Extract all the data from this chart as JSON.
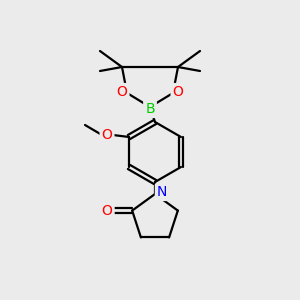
{
  "background_color": "#ebebeb",
  "bond_color": "#000000",
  "atom_colors": {
    "O": "#ff0000",
    "B": "#00cc00",
    "N": "#0000ff",
    "C": "#000000"
  },
  "figsize": [
    3.0,
    3.0
  ],
  "dpi": 100
}
